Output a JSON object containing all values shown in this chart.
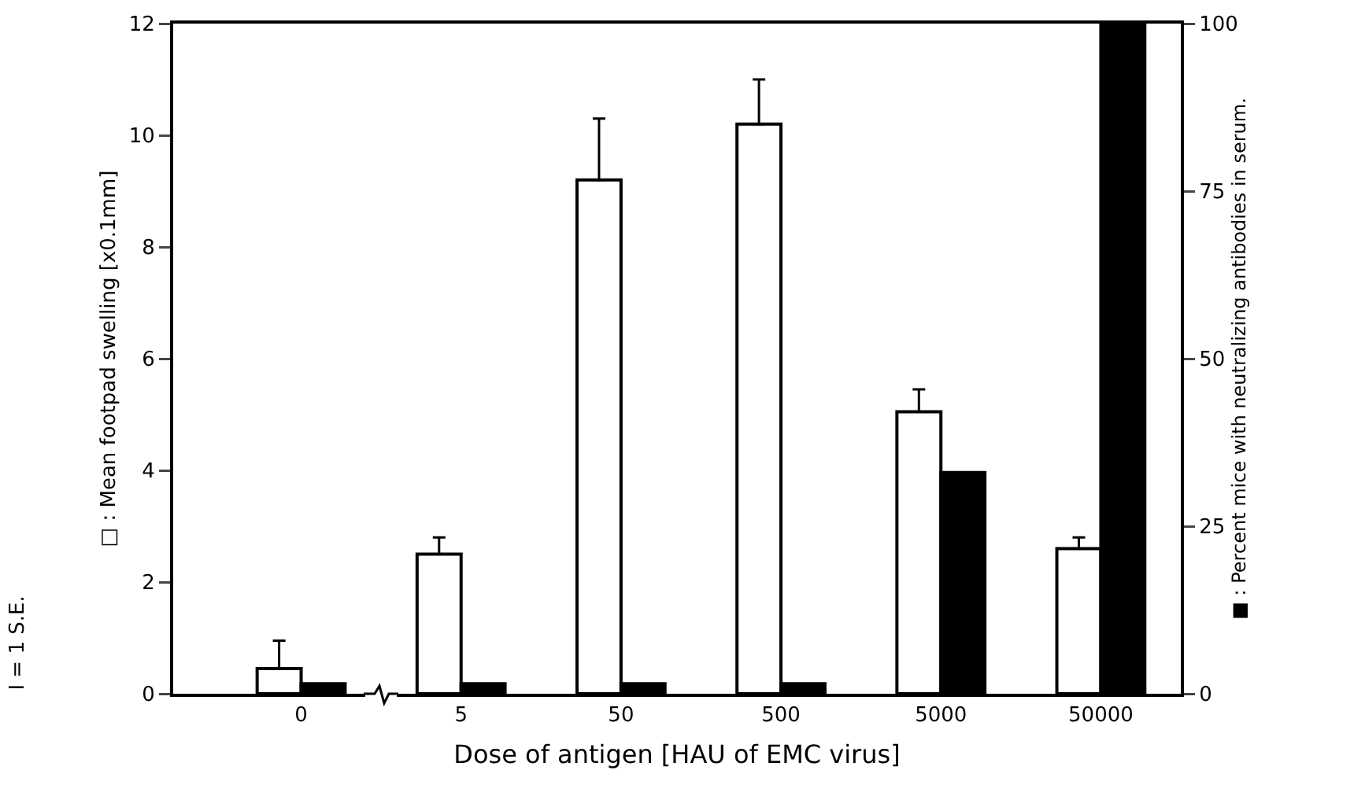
{
  "chart_data": {
    "type": "bar",
    "xlabel": "Dose of antigen [HAU of EMC virus]",
    "ylabel": "□ : Mean footpad swelling [x0.1mm]",
    "y2label": "■ : Percent mice with neutralizing antibodies in serum.",
    "annotations": [
      "I = 1 S.E."
    ],
    "categories": [
      "0",
      "5",
      "50",
      "500",
      "5000",
      "50000"
    ],
    "series": [
      {
        "color": "#ffffff",
        "values": [
          0.45,
          2.5,
          9.2,
          10.2,
          5.05,
          2.6
        ],
        "errors": [
          [
            0.45,
            0.95
          ],
          [
            2.5,
            2.8
          ],
          [
            9.2,
            10.3
          ],
          [
            10.2,
            11.0
          ],
          [
            5.05,
            5.45
          ],
          [
            2.6,
            2.8
          ]
        ]
      },
      {
        "color": "#000000",
        "axis": "y2",
        "values": [
          1.5,
          1.5,
          1.5,
          1.5,
          33,
          100
        ]
      }
    ],
    "ylim": [
      0,
      12
    ],
    "yticks": [
      0,
      2,
      4,
      6,
      8,
      10,
      12
    ],
    "y2lim": [
      0,
      100
    ],
    "y2ticks": [
      0,
      25,
      50,
      75,
      100
    ]
  }
}
